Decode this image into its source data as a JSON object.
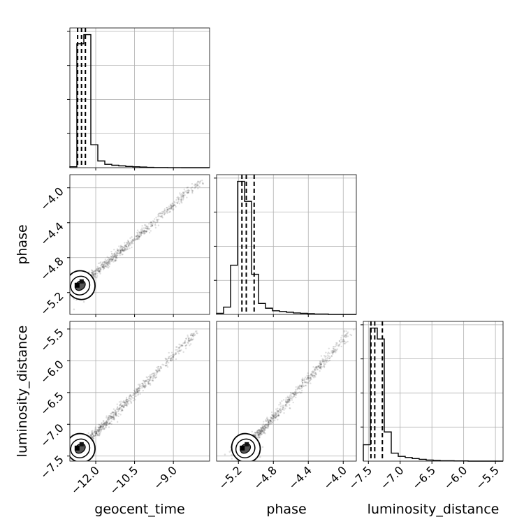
{
  "chart_data": {
    "type": "corner",
    "parameters": [
      {
        "name": "geocent_time",
        "label": "geocent_time",
        "range": [
          -13.0,
          -7.6
        ],
        "ticks": [
          -12.0,
          -10.5,
          -9.0
        ],
        "tick_labels": [
          "−12.0",
          "−10.5",
          "−9.0"
        ],
        "quantiles": [
          -12.7,
          -12.55,
          -12.4
        ],
        "hist_edges": [
          -13.0,
          -12.73,
          -12.46,
          -12.19,
          -11.92,
          -11.65,
          -11.38,
          -11.11,
          -10.84,
          -10.57,
          -10.3,
          -10.03,
          -9.76,
          -9.49,
          -9.22,
          -8.95,
          -8.68,
          -8.41,
          -8.14,
          -7.87,
          -7.6
        ],
        "hist_counts": [
          0.3,
          40.5,
          43.5,
          7.5,
          2.2,
          1.1,
          0.8,
          0.6,
          0.4,
          0.3,
          0.2,
          0.1,
          0.05,
          0.05,
          0.02,
          0.02,
          0,
          0,
          0,
          0
        ]
      },
      {
        "name": "phase",
        "label": "phase",
        "range": [
          -5.45,
          -3.85
        ],
        "ticks": [
          -5.2,
          -4.8,
          -4.4,
          -4.0
        ],
        "tick_labels": [
          "−5.2",
          "−4.8",
          "−4.4",
          "−4.0"
        ],
        "quantiles": [
          -5.16,
          -5.11,
          -5.02
        ],
        "hist_edges": [
          -5.45,
          -5.37,
          -5.29,
          -5.21,
          -5.13,
          -5.05,
          -4.97,
          -4.89,
          -4.81,
          -4.73,
          -4.65,
          -4.57,
          -4.49,
          -4.41,
          -4.33,
          -4.25,
          -4.17,
          -4.09,
          -4.01,
          -3.93,
          -3.85
        ],
        "hist_counts": [
          0.3,
          2.0,
          13.5,
          36.5,
          31.0,
          11.0,
          3.0,
          1.7,
          1.0,
          0.8,
          0.6,
          0.4,
          0.3,
          0.2,
          0.1,
          0.1,
          0,
          0,
          0,
          0
        ]
      },
      {
        "name": "luminosity_distance",
        "label": "luminosity_distance",
        "range": [
          -7.58,
          -5.38
        ],
        "ticks": [
          -7.5,
          -7.0,
          -6.5,
          -6.0,
          -5.5
        ],
        "tick_labels": [
          "−7.5",
          "−7.0",
          "−6.5",
          "−6.0",
          "−5.5"
        ],
        "quantiles": [
          -7.46,
          -7.4,
          -7.28
        ],
        "hist_edges": [
          -7.58,
          -7.47,
          -7.36,
          -7.25,
          -7.14,
          -7.03,
          -6.92,
          -6.81,
          -6.7,
          -6.59,
          -6.48,
          -6.37,
          -6.26,
          -6.15,
          -6.04,
          -5.93,
          -5.82,
          -5.71,
          -5.6,
          -5.49,
          -5.38
        ],
        "hist_counts": [
          4.5,
          36.5,
          33.5,
          8.0,
          2.2,
          1.3,
          1.0,
          0.7,
          0.5,
          0.3,
          0.2,
          0.1,
          0.1,
          0.05,
          0.05,
          0,
          0,
          0,
          0,
          0
        ]
      }
    ],
    "pairs": [
      {
        "x": "geocent_time",
        "y": "phase",
        "center": [
          -12.6,
          -5.12
        ],
        "spread": [
          0.12,
          0.05
        ],
        "tail_end": [
          -7.9,
          -3.92
        ],
        "tail_points": 900
      },
      {
        "x": "geocent_time",
        "y": "luminosity_distance",
        "center": [
          -12.6,
          -7.38
        ],
        "spread": [
          0.12,
          0.05
        ],
        "tail_end": [
          -8.1,
          -5.55
        ],
        "tail_points": 900
      },
      {
        "x": "phase",
        "y": "luminosity_distance",
        "center": [
          -5.12,
          -7.38
        ],
        "spread": [
          0.05,
          0.05
        ],
        "tail_end": [
          -3.92,
          -5.55
        ],
        "tail_points": 900
      }
    ],
    "grid": true,
    "hist_tick_count": 4
  }
}
